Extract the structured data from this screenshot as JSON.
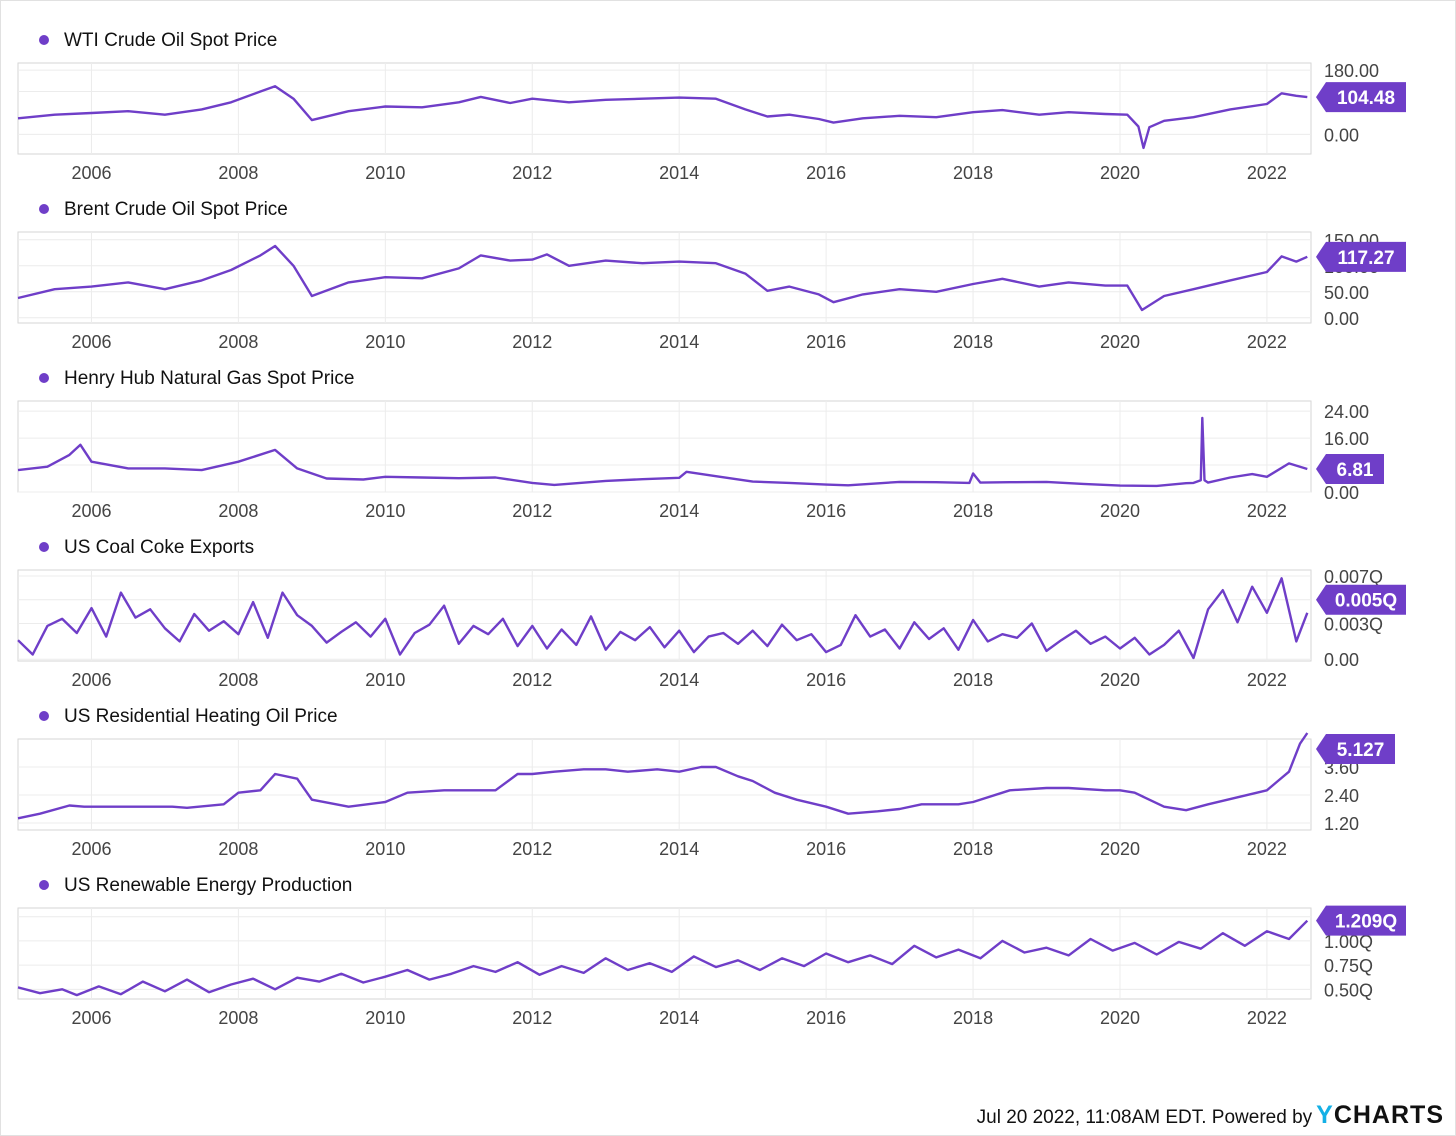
{
  "accent_color": "#6f3ec8",
  "footer": {
    "text": "Jul 20 2022, 11:08AM EDT. Powered by ",
    "brand_y": "Y",
    "brand_rest": "CHARTS"
  },
  "chart_data": [
    {
      "type": "line",
      "title": "WTI Crude Oil Spot Price",
      "x_ticks": [
        "2006",
        "2008",
        "2010",
        "2012",
        "2014",
        "2016",
        "2018",
        "2020",
        "2022"
      ],
      "y_ticks": [
        "180.00",
        "120.00",
        "0.00"
      ],
      "ylim": [
        -55,
        200
      ],
      "last_value_label": "104.48",
      "last_value": 104.48,
      "grid": true,
      "series": [
        {
          "x": [
            2005.0,
            2005.5,
            2006.0,
            2006.5,
            2007.0,
            2007.5,
            2007.9,
            2008.3,
            2008.5,
            2008.75,
            2009.0,
            2009.5,
            2010.0,
            2010.5,
            2011.0,
            2011.3,
            2011.7,
            2012.0,
            2012.5,
            2013.0,
            2013.5,
            2014.0,
            2014.5,
            2014.9,
            2015.2,
            2015.5,
            2015.9,
            2016.1,
            2016.5,
            2017.0,
            2017.5,
            2018.0,
            2018.4,
            2018.9,
            2019.3,
            2019.8,
            2020.1,
            2020.25,
            2020.32,
            2020.4,
            2020.6,
            2021.0,
            2021.5,
            2022.0,
            2022.2,
            2022.4,
            2022.55
          ],
          "values": [
            45,
            55,
            60,
            65,
            55,
            70,
            90,
            120,
            135,
            100,
            40,
            65,
            78,
            76,
            90,
            105,
            88,
            100,
            90,
            97,
            100,
            103,
            100,
            70,
            50,
            55,
            43,
            33,
            45,
            52,
            48,
            62,
            68,
            55,
            62,
            57,
            55,
            22,
            -38,
            20,
            38,
            48,
            70,
            85,
            115,
            108,
            104.48
          ]
        }
      ]
    },
    {
      "type": "line",
      "title": "Brent Crude Oil Spot Price",
      "x_ticks": [
        "2006",
        "2008",
        "2010",
        "2012",
        "2014",
        "2016",
        "2018",
        "2020",
        "2022"
      ],
      "y_ticks": [
        "150.00",
        "100.00",
        "50.00",
        "0.00"
      ],
      "ylim": [
        -10,
        165
      ],
      "last_value_label": "117.27",
      "last_value": 117.27,
      "grid": true,
      "series": [
        {
          "x": [
            2005.0,
            2005.5,
            2006.0,
            2006.5,
            2007.0,
            2007.5,
            2007.9,
            2008.3,
            2008.5,
            2008.75,
            2009.0,
            2009.5,
            2010.0,
            2010.5,
            2011.0,
            2011.3,
            2011.7,
            2012.0,
            2012.2,
            2012.5,
            2013.0,
            2013.5,
            2014.0,
            2014.5,
            2014.9,
            2015.2,
            2015.5,
            2015.9,
            2016.1,
            2016.5,
            2017.0,
            2017.5,
            2018.0,
            2018.4,
            2018.9,
            2019.3,
            2019.8,
            2020.1,
            2020.3,
            2020.6,
            2021.0,
            2021.5,
            2022.0,
            2022.2,
            2022.4,
            2022.55
          ],
          "values": [
            38,
            55,
            60,
            68,
            55,
            72,
            92,
            120,
            138,
            100,
            42,
            68,
            78,
            76,
            95,
            120,
            110,
            112,
            122,
            100,
            110,
            105,
            108,
            105,
            85,
            52,
            60,
            45,
            30,
            45,
            55,
            50,
            65,
            75,
            60,
            68,
            62,
            62,
            15,
            42,
            55,
            72,
            88,
            118,
            108,
            117.27
          ]
        }
      ]
    },
    {
      "type": "line",
      "title": "Henry Hub Natural Gas Spot Price",
      "x_ticks": [
        "2006",
        "2008",
        "2010",
        "2012",
        "2014",
        "2016",
        "2018",
        "2020",
        "2022"
      ],
      "y_ticks": [
        "24.00",
        "16.00",
        "8.00",
        "0.00"
      ],
      "ylim": [
        0,
        27
      ],
      "last_value_label": "6.81",
      "last_value": 6.81,
      "grid": true,
      "series": [
        {
          "x": [
            2005.0,
            2005.4,
            2005.7,
            2005.85,
            2006.0,
            2006.5,
            2007.0,
            2007.5,
            2008.0,
            2008.5,
            2008.8,
            2009.2,
            2009.7,
            2010.0,
            2010.5,
            2011.0,
            2011.5,
            2012.0,
            2012.3,
            2013.0,
            2013.5,
            2014.0,
            2014.1,
            2014.5,
            2015.0,
            2015.5,
            2016.0,
            2016.3,
            2017.0,
            2017.5,
            2017.95,
            2018.0,
            2018.1,
            2018.5,
            2019.0,
            2019.5,
            2020.0,
            2020.5,
            2020.9,
            2021.0,
            2021.1,
            2021.12,
            2021.15,
            2021.2,
            2021.5,
            2021.8,
            2022.0,
            2022.3,
            2022.55
          ],
          "values": [
            6.5,
            7.5,
            11,
            14,
            9,
            7,
            7,
            6.5,
            9,
            12.5,
            7,
            4,
            3.7,
            4.5,
            4.3,
            4.1,
            4.3,
            2.7,
            2.1,
            3.3,
            3.8,
            4.2,
            6,
            4.7,
            3.1,
            2.7,
            2.2,
            2.0,
            3.0,
            2.9,
            2.7,
            5.5,
            2.8,
            2.9,
            3.0,
            2.4,
            1.9,
            1.8,
            2.6,
            2.7,
            3.5,
            22,
            3.5,
            2.8,
            4.3,
            5.3,
            4.5,
            8.5,
            6.81
          ]
        }
      ]
    },
    {
      "type": "line",
      "title": "US Coal Coke Exports",
      "x_ticks": [
        "2006",
        "2008",
        "2010",
        "2012",
        "2014",
        "2016",
        "2018",
        "2020",
        "2022"
      ],
      "y_ticks": [
        "0.007Q",
        "0.005Q",
        "0.003Q",
        "0.00"
      ],
      "ylim": [
        -0.00015,
        0.0075
      ],
      "last_value_label": "0.005Q",
      "last_value": 0.005,
      "grid": true,
      "series": [
        {
          "x": [
            2005.0,
            2005.2,
            2005.4,
            2005.6,
            2005.8,
            2006.0,
            2006.2,
            2006.4,
            2006.6,
            2006.8,
            2007.0,
            2007.2,
            2007.4,
            2007.6,
            2007.8,
            2008.0,
            2008.2,
            2008.4,
            2008.6,
            2008.8,
            2009.0,
            2009.2,
            2009.4,
            2009.6,
            2009.8,
            2010.0,
            2010.2,
            2010.4,
            2010.6,
            2010.8,
            2011.0,
            2011.2,
            2011.4,
            2011.6,
            2011.8,
            2012.0,
            2012.2,
            2012.4,
            2012.6,
            2012.8,
            2013.0,
            2013.2,
            2013.4,
            2013.6,
            2013.8,
            2014.0,
            2014.2,
            2014.4,
            2014.6,
            2014.8,
            2015.0,
            2015.2,
            2015.4,
            2015.6,
            2015.8,
            2016.0,
            2016.2,
            2016.4,
            2016.6,
            2016.8,
            2017.0,
            2017.2,
            2017.4,
            2017.6,
            2017.8,
            2018.0,
            2018.2,
            2018.4,
            2018.6,
            2018.8,
            2019.0,
            2019.2,
            2019.4,
            2019.6,
            2019.8,
            2020.0,
            2020.2,
            2020.4,
            2020.6,
            2020.8,
            2021.0,
            2021.2,
            2021.4,
            2021.6,
            2021.8,
            2022.0,
            2022.2,
            2022.4,
            2022.55
          ],
          "values": [
            0.0016,
            0.0004,
            0.0028,
            0.0034,
            0.0022,
            0.0043,
            0.0019,
            0.0056,
            0.0035,
            0.0042,
            0.0026,
            0.0015,
            0.0038,
            0.0024,
            0.0032,
            0.0021,
            0.0048,
            0.0018,
            0.0056,
            0.0037,
            0.0028,
            0.0014,
            0.0023,
            0.0031,
            0.0019,
            0.0034,
            0.0004,
            0.0022,
            0.0029,
            0.0045,
            0.0013,
            0.0028,
            0.0021,
            0.0034,
            0.0011,
            0.0028,
            0.0009,
            0.0025,
            0.0012,
            0.0036,
            0.0008,
            0.0023,
            0.0016,
            0.0027,
            0.001,
            0.0024,
            0.0006,
            0.0019,
            0.0022,
            0.0013,
            0.0024,
            0.0011,
            0.0029,
            0.0016,
            0.0021,
            0.0006,
            0.0012,
            0.0037,
            0.0019,
            0.0025,
            0.0009,
            0.0031,
            0.0017,
            0.0026,
            0.0008,
            0.0033,
            0.0015,
            0.0021,
            0.0018,
            0.003,
            0.0007,
            0.0016,
            0.0024,
            0.0013,
            0.0019,
            0.0009,
            0.0018,
            0.0004,
            0.0012,
            0.0024,
            0.0001,
            0.0042,
            0.0058,
            0.0031,
            0.0061,
            0.0039,
            0.0068,
            0.0015,
            0.0039
          ]
        }
      ]
    },
    {
      "type": "line",
      "title": "US Residential Heating Oil Price",
      "x_ticks": [
        "2006",
        "2008",
        "2010",
        "2012",
        "2014",
        "2016",
        "2018",
        "2020",
        "2022"
      ],
      "y_ticks": [
        "3.60",
        "2.40",
        "1.20"
      ],
      "ylim": [
        0.9,
        4.8
      ],
      "last_value_label": "5.127",
      "last_value": 5.127,
      "grid": true,
      "series": [
        {
          "x": [
            2005.0,
            2005.3,
            2005.7,
            2005.9,
            2006.2,
            2007.1,
            2007.3,
            2007.8,
            2008.0,
            2008.3,
            2008.5,
            2008.8,
            2009.0,
            2009.5,
            2010.0,
            2010.3,
            2010.8,
            2011.0,
            2011.5,
            2011.8,
            2012.0,
            2012.3,
            2012.7,
            2013.0,
            2013.3,
            2013.7,
            2014.0,
            2014.3,
            2014.5,
            2014.8,
            2015.0,
            2015.3,
            2015.6,
            2016.0,
            2016.3,
            2016.7,
            2017.0,
            2017.3,
            2017.8,
            2018.0,
            2018.5,
            2019.0,
            2019.3,
            2019.8,
            2020.0,
            2020.2,
            2020.6,
            2020.9,
            2021.2,
            2021.6,
            2022.0,
            2022.15,
            2022.3,
            2022.45,
            2022.55
          ],
          "values": [
            1.4,
            1.6,
            1.95,
            1.9,
            1.9,
            1.9,
            1.85,
            2.0,
            2.5,
            2.6,
            3.3,
            3.1,
            2.2,
            1.9,
            2.1,
            2.5,
            2.6,
            2.6,
            2.6,
            3.3,
            3.3,
            3.4,
            3.5,
            3.5,
            3.4,
            3.5,
            3.4,
            3.6,
            3.6,
            3.2,
            3.0,
            2.5,
            2.2,
            1.9,
            1.6,
            1.7,
            1.8,
            2.0,
            2.0,
            2.1,
            2.6,
            2.7,
            2.7,
            2.6,
            2.6,
            2.5,
            1.9,
            1.75,
            2.0,
            2.3,
            2.6,
            3.0,
            3.4,
            4.6,
            5.127
          ]
        }
      ]
    },
    {
      "type": "line",
      "title": "US Renewable Energy Production",
      "x_ticks": [
        "2006",
        "2008",
        "2010",
        "2012",
        "2014",
        "2016",
        "2018",
        "2020",
        "2022"
      ],
      "y_ticks": [
        "1.25Q",
        "1.00Q",
        "0.75Q",
        "0.50Q"
      ],
      "ylim": [
        0.4,
        1.34
      ],
      "last_value_label": "1.209Q",
      "last_value": 1.209,
      "grid": true,
      "series": [
        {
          "x": [
            2005.0,
            2005.3,
            2005.6,
            2005.8,
            2006.1,
            2006.4,
            2006.7,
            2007.0,
            2007.3,
            2007.6,
            2007.9,
            2008.2,
            2008.5,
            2008.8,
            2009.1,
            2009.4,
            2009.7,
            2010.0,
            2010.3,
            2010.6,
            2010.9,
            2011.2,
            2011.5,
            2011.8,
            2012.1,
            2012.4,
            2012.7,
            2013.0,
            2013.3,
            2013.6,
            2013.9,
            2014.2,
            2014.5,
            2014.8,
            2015.1,
            2015.4,
            2015.7,
            2016.0,
            2016.3,
            2016.6,
            2016.9,
            2017.2,
            2017.5,
            2017.8,
            2018.1,
            2018.4,
            2018.7,
            2019.0,
            2019.3,
            2019.6,
            2019.9,
            2020.2,
            2020.5,
            2020.8,
            2021.1,
            2021.4,
            2021.7,
            2022.0,
            2022.3,
            2022.55
          ],
          "values": [
            0.52,
            0.46,
            0.5,
            0.44,
            0.53,
            0.45,
            0.58,
            0.48,
            0.6,
            0.47,
            0.55,
            0.61,
            0.5,
            0.62,
            0.58,
            0.66,
            0.57,
            0.63,
            0.7,
            0.6,
            0.66,
            0.74,
            0.68,
            0.78,
            0.65,
            0.74,
            0.67,
            0.82,
            0.7,
            0.77,
            0.68,
            0.84,
            0.73,
            0.8,
            0.7,
            0.82,
            0.74,
            0.87,
            0.78,
            0.85,
            0.76,
            0.95,
            0.83,
            0.91,
            0.82,
            1.0,
            0.88,
            0.93,
            0.85,
            1.02,
            0.9,
            0.98,
            0.86,
            0.99,
            0.92,
            1.08,
            0.95,
            1.1,
            1.02,
            1.209
          ]
        }
      ]
    }
  ]
}
